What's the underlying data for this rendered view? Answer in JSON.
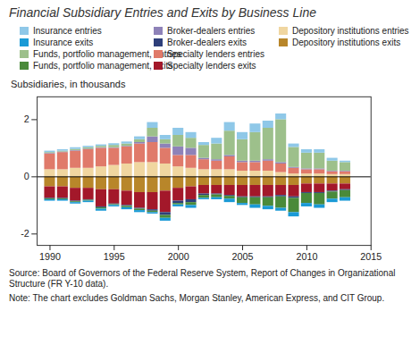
{
  "chart_data": {
    "type": "bar",
    "stacked": true,
    "title": "Financial Subsidiary Entries and Exits by Business Line",
    "ylabel": "Subsidiaries, in thousands",
    "source": "Source: Board of Governors of the Federal Reserve System, Report of Changes in Organizational Structure (FR Y-10 data).",
    "note": "Note: The chart excludes Goldman Sachs, Morgan Stanley, American Express, and CIT Group.",
    "legend": "top",
    "grid": false,
    "x": [
      1990,
      1991,
      1992,
      1993,
      1994,
      1995,
      1996,
      1997,
      1998,
      1999,
      2000,
      2001,
      2002,
      2003,
      2004,
      2005,
      2006,
      2007,
      2008,
      2009,
      2010,
      2011,
      2012,
      2013
    ],
    "xlim": [
      1989,
      2015
    ],
    "xticks": [
      1990,
      1995,
      2000,
      2005,
      2010,
      2015
    ],
    "ylim": [
      -2.4,
      2.8
    ],
    "yticks": [
      -2,
      0,
      2
    ],
    "series": [
      {
        "name": "Insurance entries",
        "color": "#8fc8e8",
        "values": [
          0.05,
          0.05,
          0.06,
          0.05,
          0.05,
          0.06,
          0.07,
          0.1,
          0.2,
          0.15,
          0.25,
          0.2,
          0.1,
          0.2,
          0.3,
          0.25,
          0.3,
          0.25,
          0.2,
          0.12,
          0.12,
          0.12,
          0.1,
          0.05
        ]
      },
      {
        "name": "Insurance exits",
        "color": "#1a9ad6",
        "values": [
          -0.05,
          -0.05,
          -0.05,
          -0.05,
          -0.07,
          -0.05,
          -0.07,
          -0.07,
          -0.05,
          -0.1,
          -0.07,
          -0.1,
          -0.05,
          -0.07,
          -0.12,
          -0.07,
          -0.12,
          -0.12,
          -0.1,
          -0.15,
          -0.12,
          -0.12,
          -0.12,
          -0.12
        ]
      },
      {
        "name": "Funds, portfolio management, entries",
        "color": "#9dc08b",
        "values": [
          0.03,
          0.03,
          0.04,
          0.05,
          0.05,
          0.08,
          0.08,
          0.1,
          0.3,
          0.15,
          0.4,
          0.35,
          0.45,
          0.55,
          0.85,
          0.75,
          1.0,
          1.1,
          1.5,
          0.7,
          0.55,
          0.55,
          0.35,
          0.3
        ]
      },
      {
        "name": "Funds, portfolio management, exits",
        "color": "#4a8a3a",
        "values": [
          -0.03,
          -0.03,
          -0.03,
          -0.03,
          -0.05,
          -0.03,
          -0.05,
          -0.05,
          -0.05,
          -0.1,
          -0.05,
          -0.1,
          -0.1,
          -0.1,
          -0.1,
          -0.2,
          -0.25,
          -0.3,
          -0.4,
          -0.5,
          -0.35,
          -0.4,
          -0.25,
          -0.25
        ]
      },
      {
        "name": "Broker-dealers entries",
        "color": "#8e82b8",
        "values": [
          0.02,
          0.02,
          0.02,
          0.02,
          0.02,
          0.02,
          0.02,
          0.05,
          0.2,
          0.15,
          0.3,
          0.25,
          0.05,
          0.05,
          0.05,
          0.05,
          0.05,
          0.05,
          0.05,
          0.03,
          0.03,
          0.03,
          0.02,
          0.02
        ]
      },
      {
        "name": "Broker-dealers exits",
        "color": "#2e3f7a",
        "values": [
          -0.02,
          -0.02,
          -0.02,
          -0.02,
          -0.03,
          -0.02,
          -0.03,
          -0.03,
          -0.05,
          -0.1,
          -0.08,
          -0.1,
          -0.05,
          -0.03,
          -0.03,
          -0.03,
          -0.03,
          -0.03,
          -0.05,
          -0.05,
          -0.03,
          -0.03,
          -0.03,
          -0.03
        ]
      },
      {
        "name": "Specialty lenders entries",
        "color": "#e07a6a",
        "values": [
          0.55,
          0.6,
          0.6,
          0.65,
          0.65,
          0.6,
          0.6,
          0.65,
          0.7,
          0.55,
          0.4,
          0.45,
          0.35,
          0.3,
          0.45,
          0.3,
          0.3,
          0.35,
          0.3,
          0.2,
          0.15,
          0.15,
          0.1,
          0.1
        ]
      },
      {
        "name": "Specialty lenders exits",
        "color": "#a3182a",
        "values": [
          -0.4,
          -0.4,
          -0.45,
          -0.4,
          -0.6,
          -0.5,
          -0.5,
          -0.55,
          -0.6,
          -0.75,
          -0.45,
          -0.45,
          -0.3,
          -0.3,
          -0.35,
          -0.4,
          -0.4,
          -0.4,
          -0.35,
          -0.4,
          -0.3,
          -0.3,
          -0.25,
          -0.2
        ]
      },
      {
        "name": "Depository institutions entries",
        "color": "#f0d6a0",
        "values": [
          0.25,
          0.25,
          0.3,
          0.3,
          0.35,
          0.4,
          0.45,
          0.5,
          0.5,
          0.45,
          0.35,
          0.3,
          0.25,
          0.25,
          0.25,
          0.2,
          0.2,
          0.2,
          0.15,
          0.1,
          0.1,
          0.1,
          0.08,
          0.08
        ]
      },
      {
        "name": "Depository institutions exits",
        "color": "#b8862a",
        "values": [
          -0.35,
          -0.35,
          -0.4,
          -0.4,
          -0.45,
          -0.45,
          -0.5,
          -0.55,
          -0.55,
          -0.5,
          -0.4,
          -0.35,
          -0.3,
          -0.3,
          -0.3,
          -0.3,
          -0.3,
          -0.3,
          -0.3,
          -0.3,
          -0.25,
          -0.25,
          -0.25,
          -0.25
        ]
      }
    ]
  }
}
